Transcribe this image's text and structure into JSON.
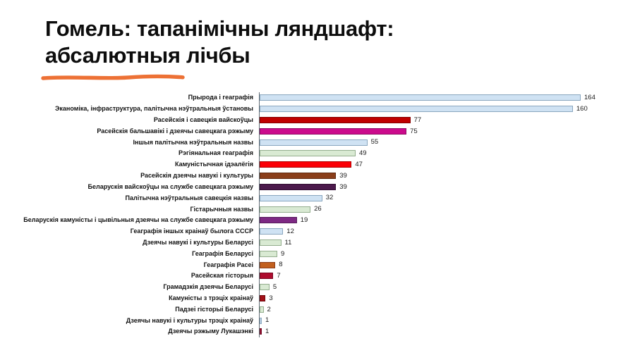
{
  "title": {
    "line1": "Гомель: тапанімічны ляндшафт:",
    "line2": "абсалютныя лічбы"
  },
  "accent_underline_color": "#ed7135",
  "chart_data": {
    "type": "bar",
    "orientation": "horizontal",
    "title": "Гомель: тапанімічны ляндшафт: абсалютныя лічбы",
    "xlabel": "",
    "ylabel": "",
    "xlim": [
      0,
      170
    ],
    "grid": false,
    "legend": "none",
    "value_labels": "right-of-bar",
    "categories": [
      "Прырода і геаграфія",
      "Эканоміка, інфраструктура, палітычна нэўтральныя ўстановы",
      "Расейскія і савецкія вайскоўцы",
      "Расейскія бальшавікі і дзеячы савецкага рэжыму",
      "Іншыя палітычна нэўтральныя назвы",
      "Рэгіянальная геаграфія",
      "Камуністычная ідэалёгія",
      "Расейскія дзеячы навукі і культуры",
      "Беларускія вайскоўцы на службе савецкага рэжыму",
      "Палітычна нэўтральныя савецкія назвы",
      "Гістарычныя назвы",
      "Беларускія камуністы і цывільныя дзеячы на службе савецкага рэжыму",
      "Геаграфія іншых краінаў былога СССР",
      "Дзеячы навукі і культуры Беларусі",
      "Геаграфія Беларусі",
      "Геаграфія Расеі",
      "Расейская гісторыя",
      "Грамадзкія дзеячы Беларусі",
      "Камуністы з трэціх краінаў",
      "Падзеі гісторыі Беларусі",
      "Дзеячы навукі і культуры трэціх краінаў",
      "Дзеячы рэжыму Лукашэнкі"
    ],
    "values": [
      164,
      160,
      77,
      75,
      55,
      49,
      47,
      39,
      39,
      32,
      26,
      19,
      12,
      11,
      9,
      8,
      7,
      5,
      3,
      2,
      1,
      1
    ],
    "bar_colors": [
      "#cfe2f3",
      "#cfe2f3",
      "#c00000",
      "#cb0b8c",
      "#cfe2f3",
      "#d9ead3",
      "#fb0007",
      "#8a3e1a",
      "#4c1a4c",
      "#cfe2f3",
      "#d9ead3",
      "#7e2a84",
      "#cfe2f3",
      "#d9ead3",
      "#d9ead3",
      "#c2601e",
      "#ae0c2e",
      "#d9ead3",
      "#a31118",
      "#d9ead3",
      "#cfe2f3",
      "#a21236"
    ],
    "bar_border_colors": [
      "#8aa7bf",
      "#8aa7bf",
      "#850000",
      "#8f0762",
      "#8aa7bf",
      "#94ae8e",
      "#b00000",
      "#5f2a11",
      "#331134",
      "#8aa7bf",
      "#94ae8e",
      "#571c5b",
      "#8aa7bf",
      "#94ae8e",
      "#94ae8e",
      "#8a3e1a",
      "#770720",
      "#94ae8e",
      "#700a0f",
      "#94ae8e",
      "#8aa7bf",
      "#6f0c24"
    ]
  }
}
